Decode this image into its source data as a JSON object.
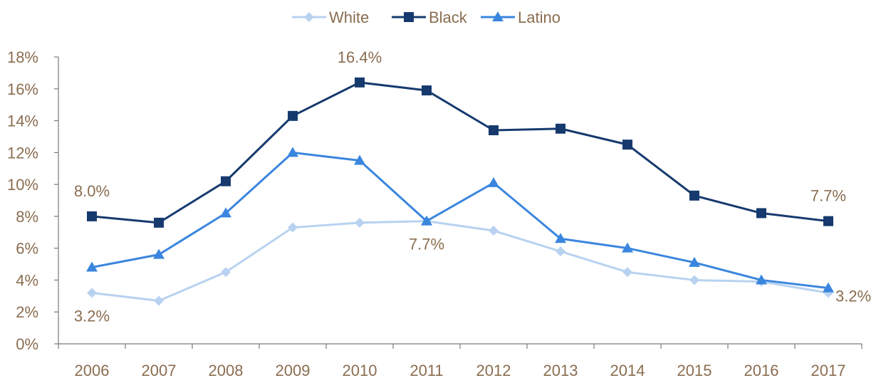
{
  "chart_data": {
    "type": "line",
    "categories": [
      "2006",
      "2007",
      "2008",
      "2009",
      "2010",
      "2011",
      "2012",
      "2013",
      "2014",
      "2015",
      "2016",
      "2017"
    ],
    "series": [
      {
        "name": "White",
        "color": "#b8d2f0",
        "marker": "diamond",
        "values": [
          3.2,
          2.7,
          4.5,
          7.3,
          7.6,
          7.7,
          7.1,
          5.8,
          4.5,
          4.0,
          3.9,
          3.2
        ]
      },
      {
        "name": "Black",
        "color": "#163a6e",
        "marker": "square",
        "values": [
          8.0,
          7.6,
          10.2,
          14.3,
          16.4,
          15.9,
          13.4,
          13.5,
          12.5,
          9.3,
          8.2,
          7.7
        ]
      },
      {
        "name": "Latino",
        "color": "#3a86de",
        "marker": "triangle",
        "values": [
          4.8,
          5.6,
          8.2,
          12.0,
          11.5,
          7.7,
          10.1,
          6.6,
          6.0,
          5.1,
          4.0,
          3.5
        ]
      }
    ],
    "ylim": [
      0,
      18
    ],
    "yticks": [
      "0%",
      "2%",
      "4%",
      "6%",
      "8%",
      "10%",
      "12%",
      "14%",
      "16%",
      "18%"
    ],
    "legend_position": "top-center",
    "grid": false,
    "annotations": [
      {
        "text": "16.4%",
        "series": "Black",
        "category": "2010",
        "placement": "above"
      },
      {
        "text": "8.0%",
        "series": "Black",
        "category": "2006",
        "placement": "above"
      },
      {
        "text": "7.7%",
        "series": "Black",
        "category": "2017",
        "placement": "above"
      },
      {
        "text": "7.7%",
        "series": "White",
        "category": "2011",
        "placement": "below"
      },
      {
        "text": "3.2%",
        "series": "White",
        "category": "2006",
        "placement": "below"
      },
      {
        "text": "3.2%",
        "series": "White",
        "category": "2017",
        "placement": "right"
      }
    ],
    "text_color": "#8a6d50",
    "axis_color": "#7a7a7a"
  }
}
